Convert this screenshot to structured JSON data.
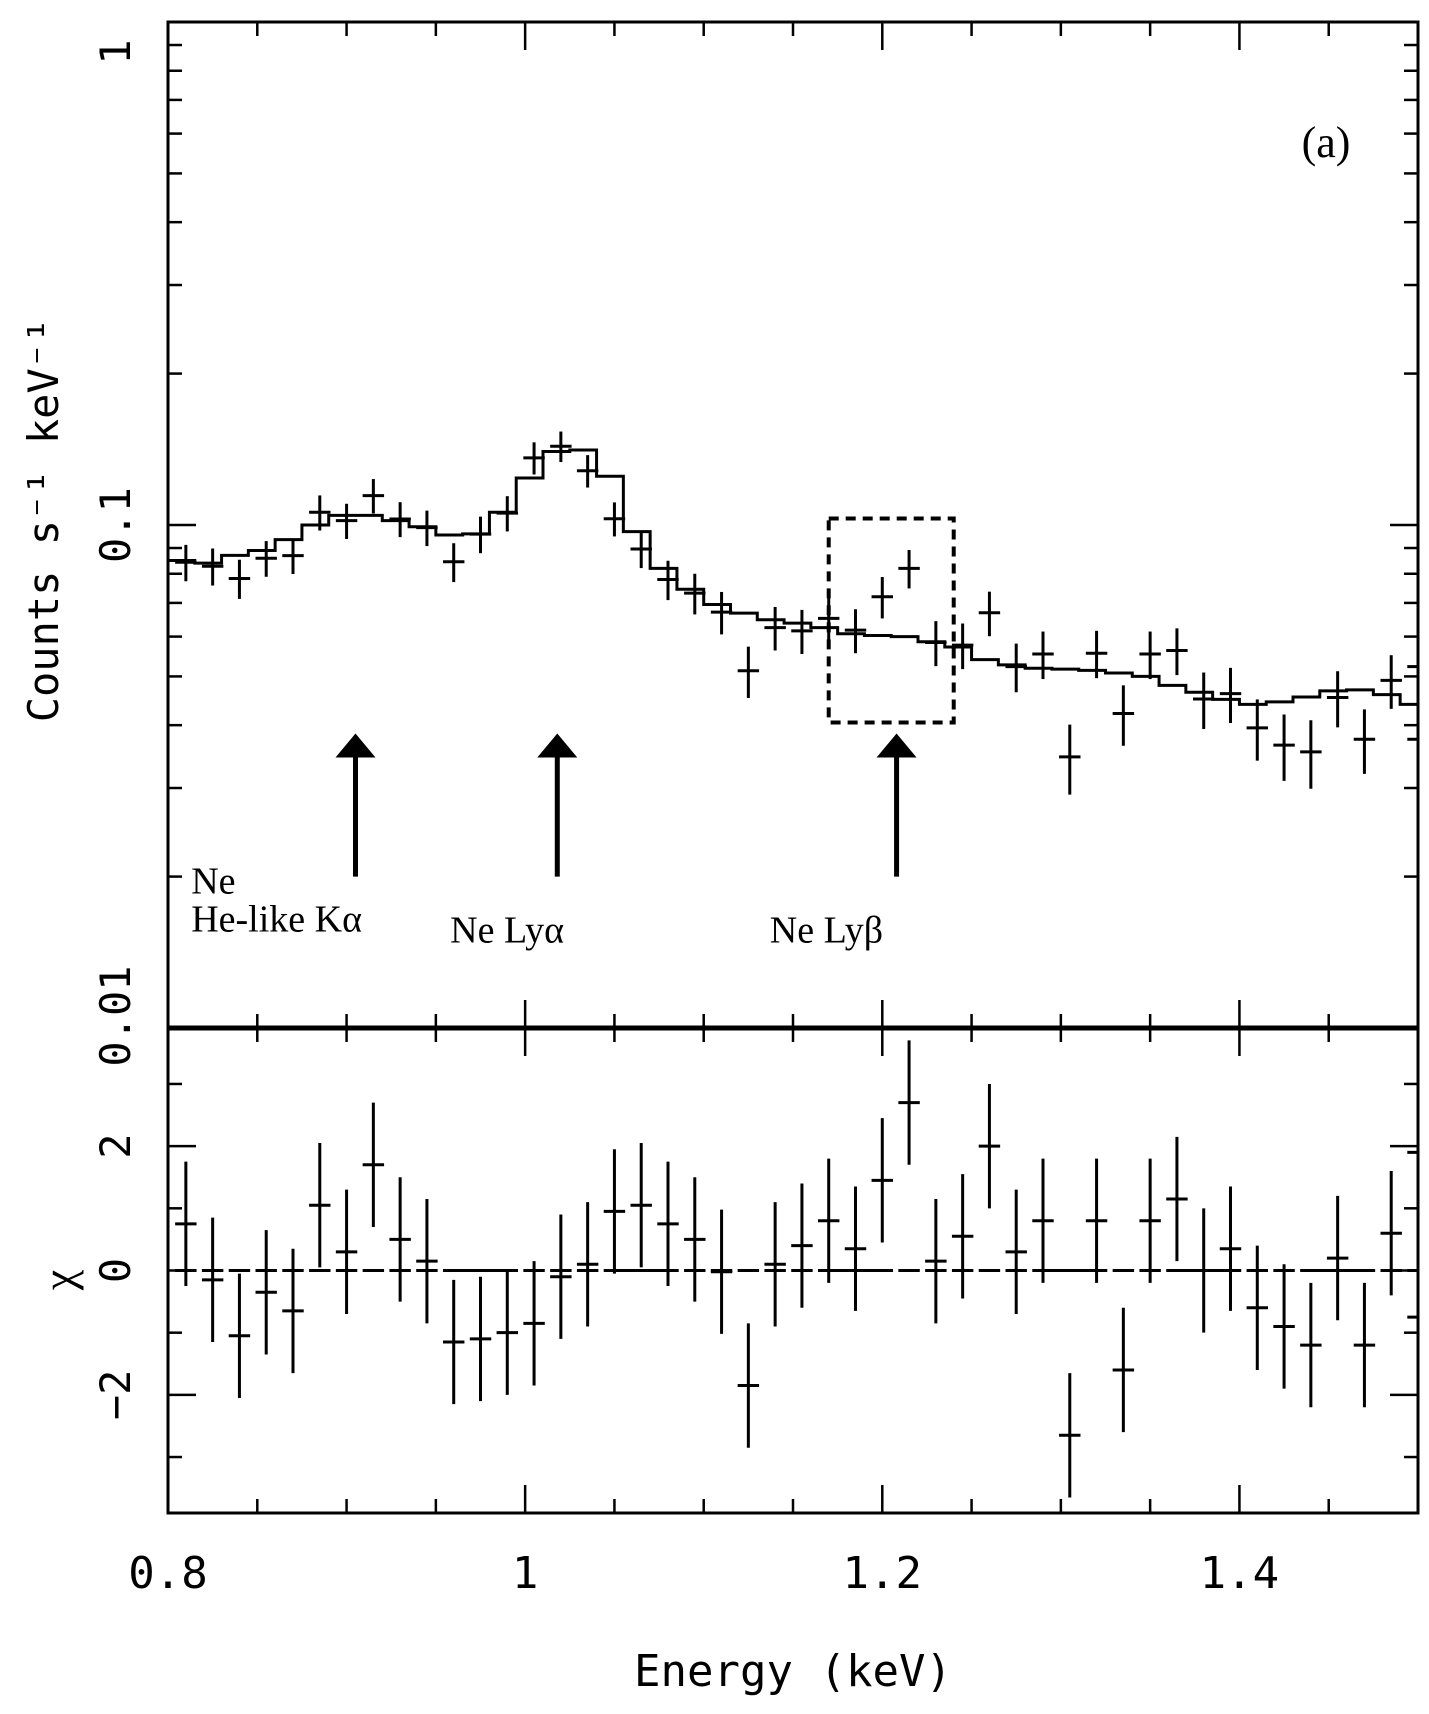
{
  "chart_data": {
    "type": "scatter",
    "panel_label": "(a)",
    "xlabel": "Energy (keV)",
    "xlim": [
      0.8,
      1.5
    ],
    "x_tick_labels": [
      "0.8",
      "1",
      "1.2",
      "1.4"
    ],
    "x_tick_values": [
      0.8,
      1.0,
      1.2,
      1.4
    ],
    "top": {
      "ylabel": "Counts s⁻¹ keV⁻¹",
      "yscale": "log",
      "ylim": [
        0.01,
        1
      ],
      "y_tick_labels": [
        "0.01",
        "0.1",
        "1"
      ],
      "y_tick_values": [
        0.01,
        0.1,
        1
      ],
      "data": [
        [
          0.81,
          0.0843,
          0.006,
          0.007
        ],
        [
          0.825,
          0.0828,
          0.006,
          0.007
        ],
        [
          0.84,
          0.0783,
          0.006,
          0.007
        ],
        [
          0.855,
          0.0859,
          0.006,
          0.007
        ],
        [
          0.87,
          0.0869,
          0.006,
          0.007
        ],
        [
          0.885,
          0.106,
          0.006,
          0.0085
        ],
        [
          0.9,
          0.102,
          0.006,
          0.0082
        ],
        [
          0.915,
          0.1144,
          0.006,
          0.009
        ],
        [
          0.93,
          0.1028,
          0.006,
          0.0082
        ],
        [
          0.945,
          0.0988,
          0.006,
          0.008
        ],
        [
          0.96,
          0.0845,
          0.006,
          0.0075
        ],
        [
          0.975,
          0.0959,
          0.006,
          0.008
        ],
        [
          0.99,
          0.1056,
          0.006,
          0.0085
        ],
        [
          1.005,
          0.136,
          0.006,
          0.01
        ],
        [
          1.02,
          0.1434,
          0.006,
          0.01
        ],
        [
          1.035,
          0.1282,
          0.006,
          0.0095
        ],
        [
          1.05,
          0.1029,
          0.006,
          0.008
        ],
        [
          1.065,
          0.0896,
          0.006,
          0.0075
        ],
        [
          1.08,
          0.0779,
          0.006,
          0.007
        ],
        [
          1.095,
          0.0732,
          0.006,
          0.0068
        ],
        [
          1.11,
          0.0671,
          0.006,
          0.0065
        ],
        [
          1.125,
          0.0513,
          0.006,
          0.006
        ],
        [
          1.14,
          0.0625,
          0.006,
          0.0062
        ],
        [
          1.155,
          0.0616,
          0.006,
          0.0062
        ],
        [
          1.17,
          0.0652,
          0.006,
          0.0065
        ],
        [
          1.185,
          0.0618,
          0.006,
          0.0062
        ],
        [
          1.2,
          0.072,
          0.006,
          0.0068
        ],
        [
          1.215,
          0.082,
          0.006,
          0.0072
        ],
        [
          1.23,
          0.0584,
          0.006,
          0.006
        ],
        [
          1.245,
          0.0577,
          0.006,
          0.006
        ],
        [
          1.26,
          0.0669,
          0.006,
          0.0068
        ],
        [
          1.275,
          0.0523,
          0.006,
          0.0058
        ],
        [
          1.29,
          0.0554,
          0.006,
          0.006
        ],
        [
          1.305,
          0.0346,
          0.006,
          0.0055
        ],
        [
          1.32,
          0.0556,
          0.006,
          0.006
        ],
        [
          1.335,
          0.0422,
          0.006,
          0.0058
        ],
        [
          1.35,
          0.0554,
          0.006,
          0.006
        ],
        [
          1.365,
          0.0563,
          0.006,
          0.006
        ],
        [
          1.38,
          0.0451,
          0.006,
          0.0058
        ],
        [
          1.395,
          0.0462,
          0.006,
          0.0058
        ],
        [
          1.41,
          0.0395,
          0.006,
          0.0055
        ],
        [
          1.425,
          0.0365,
          0.006,
          0.0055
        ],
        [
          1.44,
          0.0354,
          0.006,
          0.0055
        ],
        [
          1.455,
          0.0454,
          0.006,
          0.0058
        ],
        [
          1.47,
          0.0375,
          0.006,
          0.0055
        ],
        [
          1.485,
          0.0491,
          0.006,
          0.006
        ],
        [
          1.5,
          0.0375,
          0.006,
          0.0055
        ],
        [
          1.5,
          0.0523,
          0.006,
          0.006
        ]
      ],
      "model": [
        [
          0.8,
          0.085
        ],
        [
          0.815,
          0.084
        ],
        [
          0.83,
          0.087
        ],
        [
          0.845,
          0.089
        ],
        [
          0.86,
          0.0935
        ],
        [
          0.875,
          0.1
        ],
        [
          0.89,
          0.1045
        ],
        [
          0.905,
          0.1045
        ],
        [
          0.92,
          0.102
        ],
        [
          0.935,
          0.0992
        ],
        [
          0.95,
          0.0955
        ],
        [
          0.965,
          0.096
        ],
        [
          0.98,
          0.106
        ],
        [
          0.995,
          0.124
        ],
        [
          1.01,
          0.14
        ],
        [
          1.025,
          0.141
        ],
        [
          1.04,
          0.125
        ],
        [
          1.055,
          0.097
        ],
        [
          1.07,
          0.082
        ],
        [
          1.085,
          0.0745
        ],
        [
          1.1,
          0.0695
        ],
        [
          1.115,
          0.0668
        ],
        [
          1.13,
          0.0648
        ],
        [
          1.145,
          0.0638
        ],
        [
          1.16,
          0.0625
        ],
        [
          1.175,
          0.0608
        ],
        [
          1.19,
          0.0603
        ],
        [
          1.205,
          0.06
        ],
        [
          1.22,
          0.0586
        ],
        [
          1.235,
          0.0572
        ],
        [
          1.25,
          0.054
        ],
        [
          1.265,
          0.0527
        ],
        [
          1.28,
          0.0519
        ],
        [
          1.295,
          0.0517
        ],
        [
          1.31,
          0.0514
        ],
        [
          1.325,
          0.0508
        ],
        [
          1.34,
          0.05
        ],
        [
          1.355,
          0.048
        ],
        [
          1.37,
          0.0465
        ],
        [
          1.385,
          0.045
        ],
        [
          1.4,
          0.044
        ],
        [
          1.415,
          0.0445
        ],
        [
          1.43,
          0.0455
        ],
        [
          1.445,
          0.0468
        ],
        [
          1.46,
          0.047
        ],
        [
          1.475,
          0.046
        ],
        [
          1.49,
          0.044
        ]
      ],
      "annotations": [
        {
          "text_lines": [
            "Ne",
            "He-like Kα"
          ],
          "arrow_x": 0.905,
          "arrow_from": 0.02,
          "arrow_to": 0.0385,
          "text_x": 0.813,
          "text_y": 0.0185
        },
        {
          "text_lines": [
            "Ne Lyα"
          ],
          "arrow_x": 1.018,
          "arrow_from": 0.02,
          "arrow_to": 0.0385,
          "text_x": 0.958,
          "text_y": 0.0148
        },
        {
          "text_lines": [
            "Ne Lyβ"
          ],
          "arrow_x": 1.208,
          "arrow_from": 0.02,
          "arrow_to": 0.0385,
          "text_x": 1.137,
          "text_y": 0.0148
        }
      ],
      "highlight_box": {
        "x0": 1.17,
        "x1": 1.24,
        "y0": 0.0405,
        "y1": 0.103,
        "style": "dashed"
      }
    },
    "bottom": {
      "ylabel": "χ",
      "ylim": [
        -3.9,
        3.9
      ],
      "y_tick_labels": [
        "−2",
        "0",
        "2"
      ],
      "y_tick_values": [
        -2,
        0,
        2
      ],
      "data": [
        [
          0.81,
          0.75,
          1.0
        ],
        [
          0.825,
          -0.15,
          1.0
        ],
        [
          0.84,
          -1.05,
          1.0
        ],
        [
          0.855,
          -0.35,
          1.0
        ],
        [
          0.87,
          -0.65,
          1.0
        ],
        [
          0.885,
          1.05,
          1.0
        ],
        [
          0.9,
          0.3,
          1.0
        ],
        [
          0.915,
          1.7,
          1.0
        ],
        [
          0.93,
          0.5,
          1.0
        ],
        [
          0.945,
          0.15,
          1.0
        ],
        [
          0.96,
          -1.15,
          1.0
        ],
        [
          0.975,
          -1.1,
          1.0
        ],
        [
          0.99,
          -1.0,
          1.0
        ],
        [
          1.005,
          -0.85,
          1.0
        ],
        [
          1.02,
          -0.1,
          1.0
        ],
        [
          1.035,
          0.1,
          1.0
        ],
        [
          1.05,
          0.95,
          1.0
        ],
        [
          1.065,
          1.05,
          1.0
        ],
        [
          1.08,
          0.75,
          1.0
        ],
        [
          1.095,
          0.5,
          1.0
        ],
        [
          1.11,
          -0.02,
          1.0
        ],
        [
          1.125,
          -1.85,
          1.0
        ],
        [
          1.14,
          0.1,
          1.0
        ],
        [
          1.155,
          0.4,
          1.0
        ],
        [
          1.17,
          0.8,
          1.0
        ],
        [
          1.185,
          0.35,
          1.0
        ],
        [
          1.2,
          1.45,
          1.0
        ],
        [
          1.215,
          2.7,
          1.0
        ],
        [
          1.23,
          0.15,
          1.0
        ],
        [
          1.245,
          0.55,
          1.0
        ],
        [
          1.26,
          2.0,
          1.0
        ],
        [
          1.275,
          0.3,
          1.0
        ],
        [
          1.29,
          0.8,
          1.0
        ],
        [
          1.305,
          -2.65,
          1.0
        ],
        [
          1.32,
          0.8,
          1.0
        ],
        [
          1.335,
          -1.6,
          1.0
        ],
        [
          1.35,
          0.8,
          1.0
        ],
        [
          1.365,
          1.15,
          1.0
        ],
        [
          1.38,
          0.0,
          1.0
        ],
        [
          1.395,
          0.35,
          1.0
        ],
        [
          1.41,
          -0.6,
          1.0
        ],
        [
          1.425,
          -0.9,
          1.0
        ],
        [
          1.44,
          -1.2,
          1.0
        ],
        [
          1.455,
          0.2,
          1.0
        ],
        [
          1.47,
          -1.2,
          1.0
        ],
        [
          1.485,
          0.6,
          1.0
        ],
        [
          1.5,
          -0.75,
          1.0
        ],
        [
          1.5,
          1.9,
          1.0
        ]
      ],
      "zero_segments": [
        [
          0.96,
          0.99
        ],
        [
          1.045,
          1.075
        ],
        [
          1.17,
          1.205
        ],
        [
          1.29,
          1.32
        ],
        [
          1.365,
          1.395
        ],
        [
          1.44,
          1.47
        ]
      ]
    }
  }
}
